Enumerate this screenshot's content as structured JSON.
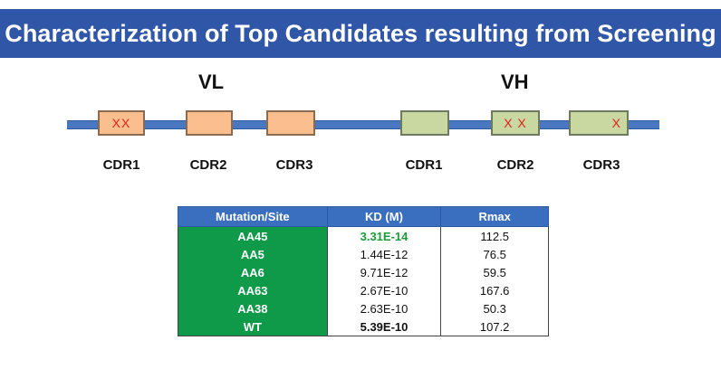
{
  "title": "Characterization of Top Candidates resulting from Screening",
  "diagram": {
    "vl": {
      "label": "VL",
      "cdrs": [
        {
          "label": "CDR1",
          "marks": "XX"
        },
        {
          "label": "CDR2",
          "marks": ""
        },
        {
          "label": "CDR3",
          "marks": ""
        }
      ]
    },
    "vh": {
      "label": "VH",
      "cdrs": [
        {
          "label": "CDR1",
          "marks": ""
        },
        {
          "label": "CDR2",
          "marks": "X X"
        },
        {
          "label": "CDR3",
          "marks": "X"
        }
      ]
    },
    "colors": {
      "vl_box": "#fbbf8f",
      "vh_box": "#c8d8a0",
      "track": "#4a78c0",
      "mark": "#e02020"
    }
  },
  "table": {
    "headers": [
      "Mutation/Site",
      "KD (M)",
      "Rmax"
    ],
    "rows": [
      {
        "site": "AA45",
        "kd": "3.31E-14",
        "rmax": "112.5"
      },
      {
        "site": "AA5",
        "kd": "1.44E-12",
        "rmax": "76.5"
      },
      {
        "site": "AA6",
        "kd": "9.71E-12",
        "rmax": "59.5"
      },
      {
        "site": "AA63",
        "kd": "2.67E-10",
        "rmax": "167.6"
      },
      {
        "site": "AA38",
        "kd": "2.63E-10",
        "rmax": "50.3"
      },
      {
        "site": "WT",
        "kd": "5.39E-10",
        "rmax": "107.2"
      }
    ],
    "colors": {
      "header": "#3a6fbf",
      "site_cell": "#0f9a4a",
      "best_kd": "#1a9a3a"
    }
  }
}
